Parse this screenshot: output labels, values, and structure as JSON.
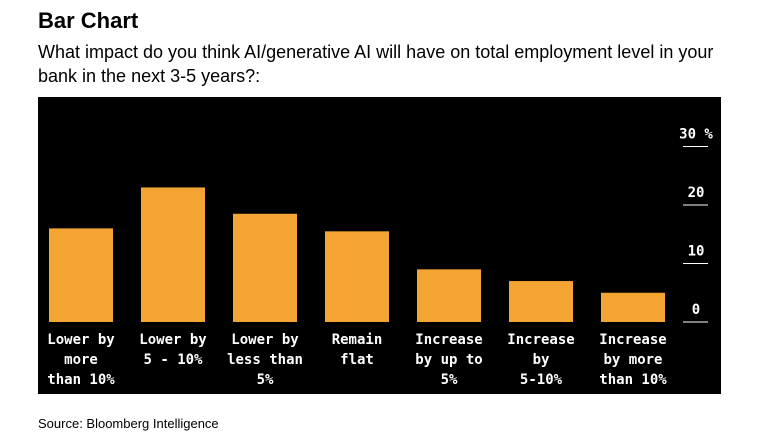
{
  "title": "Bar Chart",
  "subtitle": "What impact do you think AI/generative AI will have on total employment level in your bank in the next 3-5 years?:",
  "source": "Source: Bloomberg Intelligence",
  "colors": {
    "bar": "#f4a433",
    "background": "#000000",
    "text": "#ffffff"
  },
  "chart_data": {
    "type": "bar",
    "categories": [
      [
        "Lower by",
        "more",
        "than 10%"
      ],
      [
        "Lower by",
        "5 - 10%"
      ],
      [
        "Lower by",
        "less than",
        "5%"
      ],
      [
        "Remain",
        "flat"
      ],
      [
        "Increase",
        "by up to",
        "5%"
      ],
      [
        "Increase",
        "by",
        "5-10%"
      ],
      [
        "Increase",
        "by more",
        "than 10%"
      ]
    ],
    "values": [
      16,
      23,
      18.5,
      15.5,
      9,
      7,
      5
    ],
    "yticks": [
      "30 %",
      "20",
      "10",
      "0"
    ],
    "ytick_values": [
      30,
      20,
      10,
      0
    ],
    "ylim": [
      0,
      30
    ],
    "grid": false,
    "axis_position": "right"
  }
}
